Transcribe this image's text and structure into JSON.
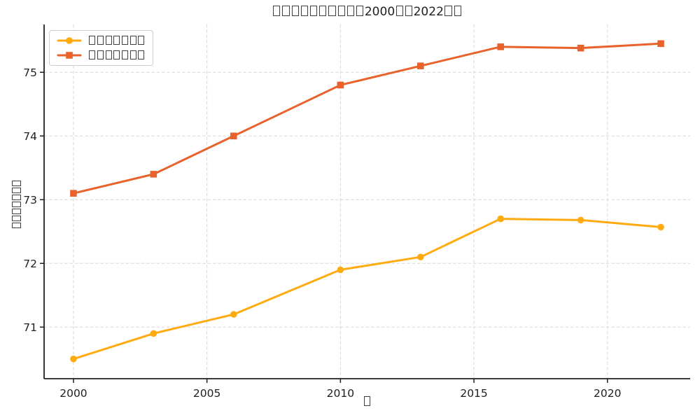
{
  "title": "□□□□□□□□□□2000□□2022□□",
  "xlabel": "□",
  "ylabel": "□□□□□□□",
  "colors": {
    "background": "#ffffff",
    "axis": "#1f1f1f",
    "grid": "#d7d7d7",
    "legend_border": "#cdcdcd",
    "series1": "#FFAB0F",
    "series2": "#E8632C"
  },
  "legend": {
    "entries": [
      {
        "label": "□□□□□□□",
        "color": "#FFAB0F",
        "marker": "circle"
      },
      {
        "label": "□□□□□□□",
        "color": "#E8632C",
        "marker": "square"
      }
    ]
  },
  "chart_data": {
    "type": "line",
    "title": "□□□□□□□□□□2000□□2022□□",
    "xlabel": "□",
    "ylabel": "□□□□□□□",
    "x": [
      2000,
      2003,
      2006,
      2010,
      2013,
      2016,
      2019,
      2022
    ],
    "series": [
      {
        "name": "lower-series",
        "label": "□□□□□□□",
        "color": "#FFAB0F",
        "marker": "circle",
        "values": [
          70.5,
          70.9,
          71.2,
          71.9,
          72.1,
          72.7,
          72.68,
          72.57
        ]
      },
      {
        "name": "upper-series",
        "label": "□□□□□□□",
        "color": "#E8632C",
        "marker": "square",
        "values": [
          73.1,
          73.4,
          74.0,
          74.8,
          75.1,
          75.4,
          75.38,
          75.45
        ]
      }
    ],
    "xticks": [
      2000,
      2005,
      2010,
      2015,
      2020
    ],
    "yticks": [
      71,
      72,
      73,
      74,
      75
    ],
    "xlim": [
      1998.9,
      2023.1
    ],
    "ylim": [
      70.19,
      75.75
    ],
    "grid": true,
    "grid_style": "dashed",
    "legend_position": "upper left"
  }
}
